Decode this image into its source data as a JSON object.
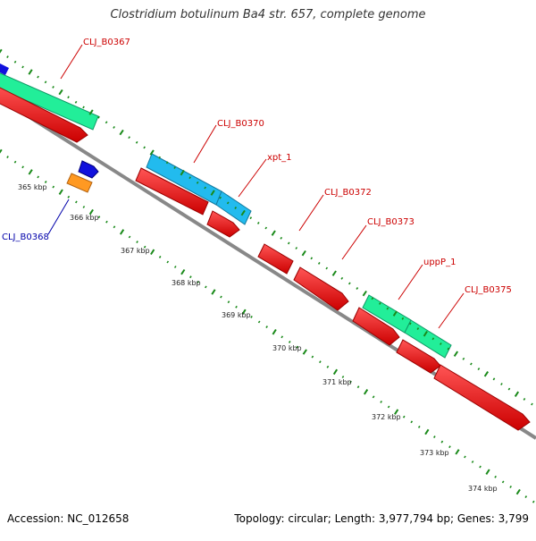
{
  "title": "Clostridium botulinum Ba4 str. 657, complete genome",
  "footer": {
    "accession": "Accession: NC_012658",
    "stats": "Topology: circular; Length: 3,977,794 bp; Genes: 3,799"
  },
  "colors": {
    "backbone": "#888888",
    "tick": "#1a8a1a",
    "cds": "#ee1111",
    "gene_green": "#22ee99",
    "gene_cyan": "#22bbee",
    "gene_blue": "#1111dd",
    "gene_orange": "#ff9922",
    "label_red": "#cc0000",
    "label_blue": "#0000aa"
  },
  "scale_labels": [
    "365 kbp",
    "366 kbp",
    "367 kbp",
    "368 kbp",
    "369 kbp",
    "370 kbp",
    "371 kbp",
    "372 kbp",
    "373 kbp",
    "374 kbp"
  ],
  "gene_labels": [
    {
      "id": "cll-b0367",
      "text": "CLJ_B0367",
      "color": "label_red"
    },
    {
      "id": "cll-b0370",
      "text": "CLJ_B0370",
      "color": "label_red"
    },
    {
      "id": "xpt-1",
      "text": "xpt_1",
      "color": "label_red"
    },
    {
      "id": "cll-b0372",
      "text": "CLJ_B0372",
      "color": "label_red"
    },
    {
      "id": "cll-b0373",
      "text": "CLJ_B0373",
      "color": "label_red"
    },
    {
      "id": "uppp-1",
      "text": "uppP_1",
      "color": "label_red"
    },
    {
      "id": "cll-b0375",
      "text": "CLJ_B0375",
      "color": "label_red"
    },
    {
      "id": "cll-b0368",
      "text": "CLJ_B0368",
      "color": "label_blue"
    }
  ]
}
